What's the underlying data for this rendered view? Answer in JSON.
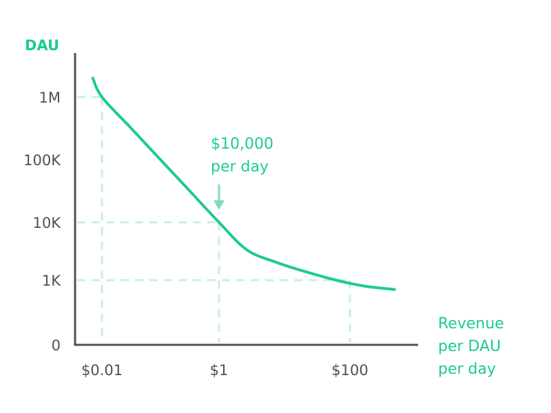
{
  "chart_data": {
    "type": "line",
    "ylabel": "DAU",
    "xlabel": [
      "Revenue",
      "per DAU",
      "per day"
    ],
    "x_scale": "log",
    "y_scale": "log",
    "y_ticks": [
      "0",
      "1K",
      "10K",
      "100K",
      "1M"
    ],
    "x_ticks": [
      "$0.01",
      "$1",
      "$100"
    ],
    "series": [
      {
        "x": [
          0.007,
          0.01,
          0.03,
          0.1,
          0.3,
          1,
          3,
          10,
          30,
          100,
          300,
          1000
        ],
        "y": [
          2000000,
          1000000,
          333333,
          100000,
          33333,
          10000,
          3333,
          2000,
          1400,
          1000,
          800,
          700
        ]
      }
    ],
    "reference_points": [
      {
        "x": "$0.01",
        "y": "1M"
      },
      {
        "x": "$1",
        "y": "10K"
      },
      {
        "x": "$100",
        "y": "1K"
      }
    ],
    "annotation": {
      "lines": [
        "$10,000",
        "per day"
      ],
      "x": 1,
      "y": 10000
    },
    "grid": false,
    "colors": {
      "accent": "#1ec997",
      "guide": "#c9efe2",
      "axis": "#505050",
      "arrow": "#7fdcbc"
    }
  }
}
